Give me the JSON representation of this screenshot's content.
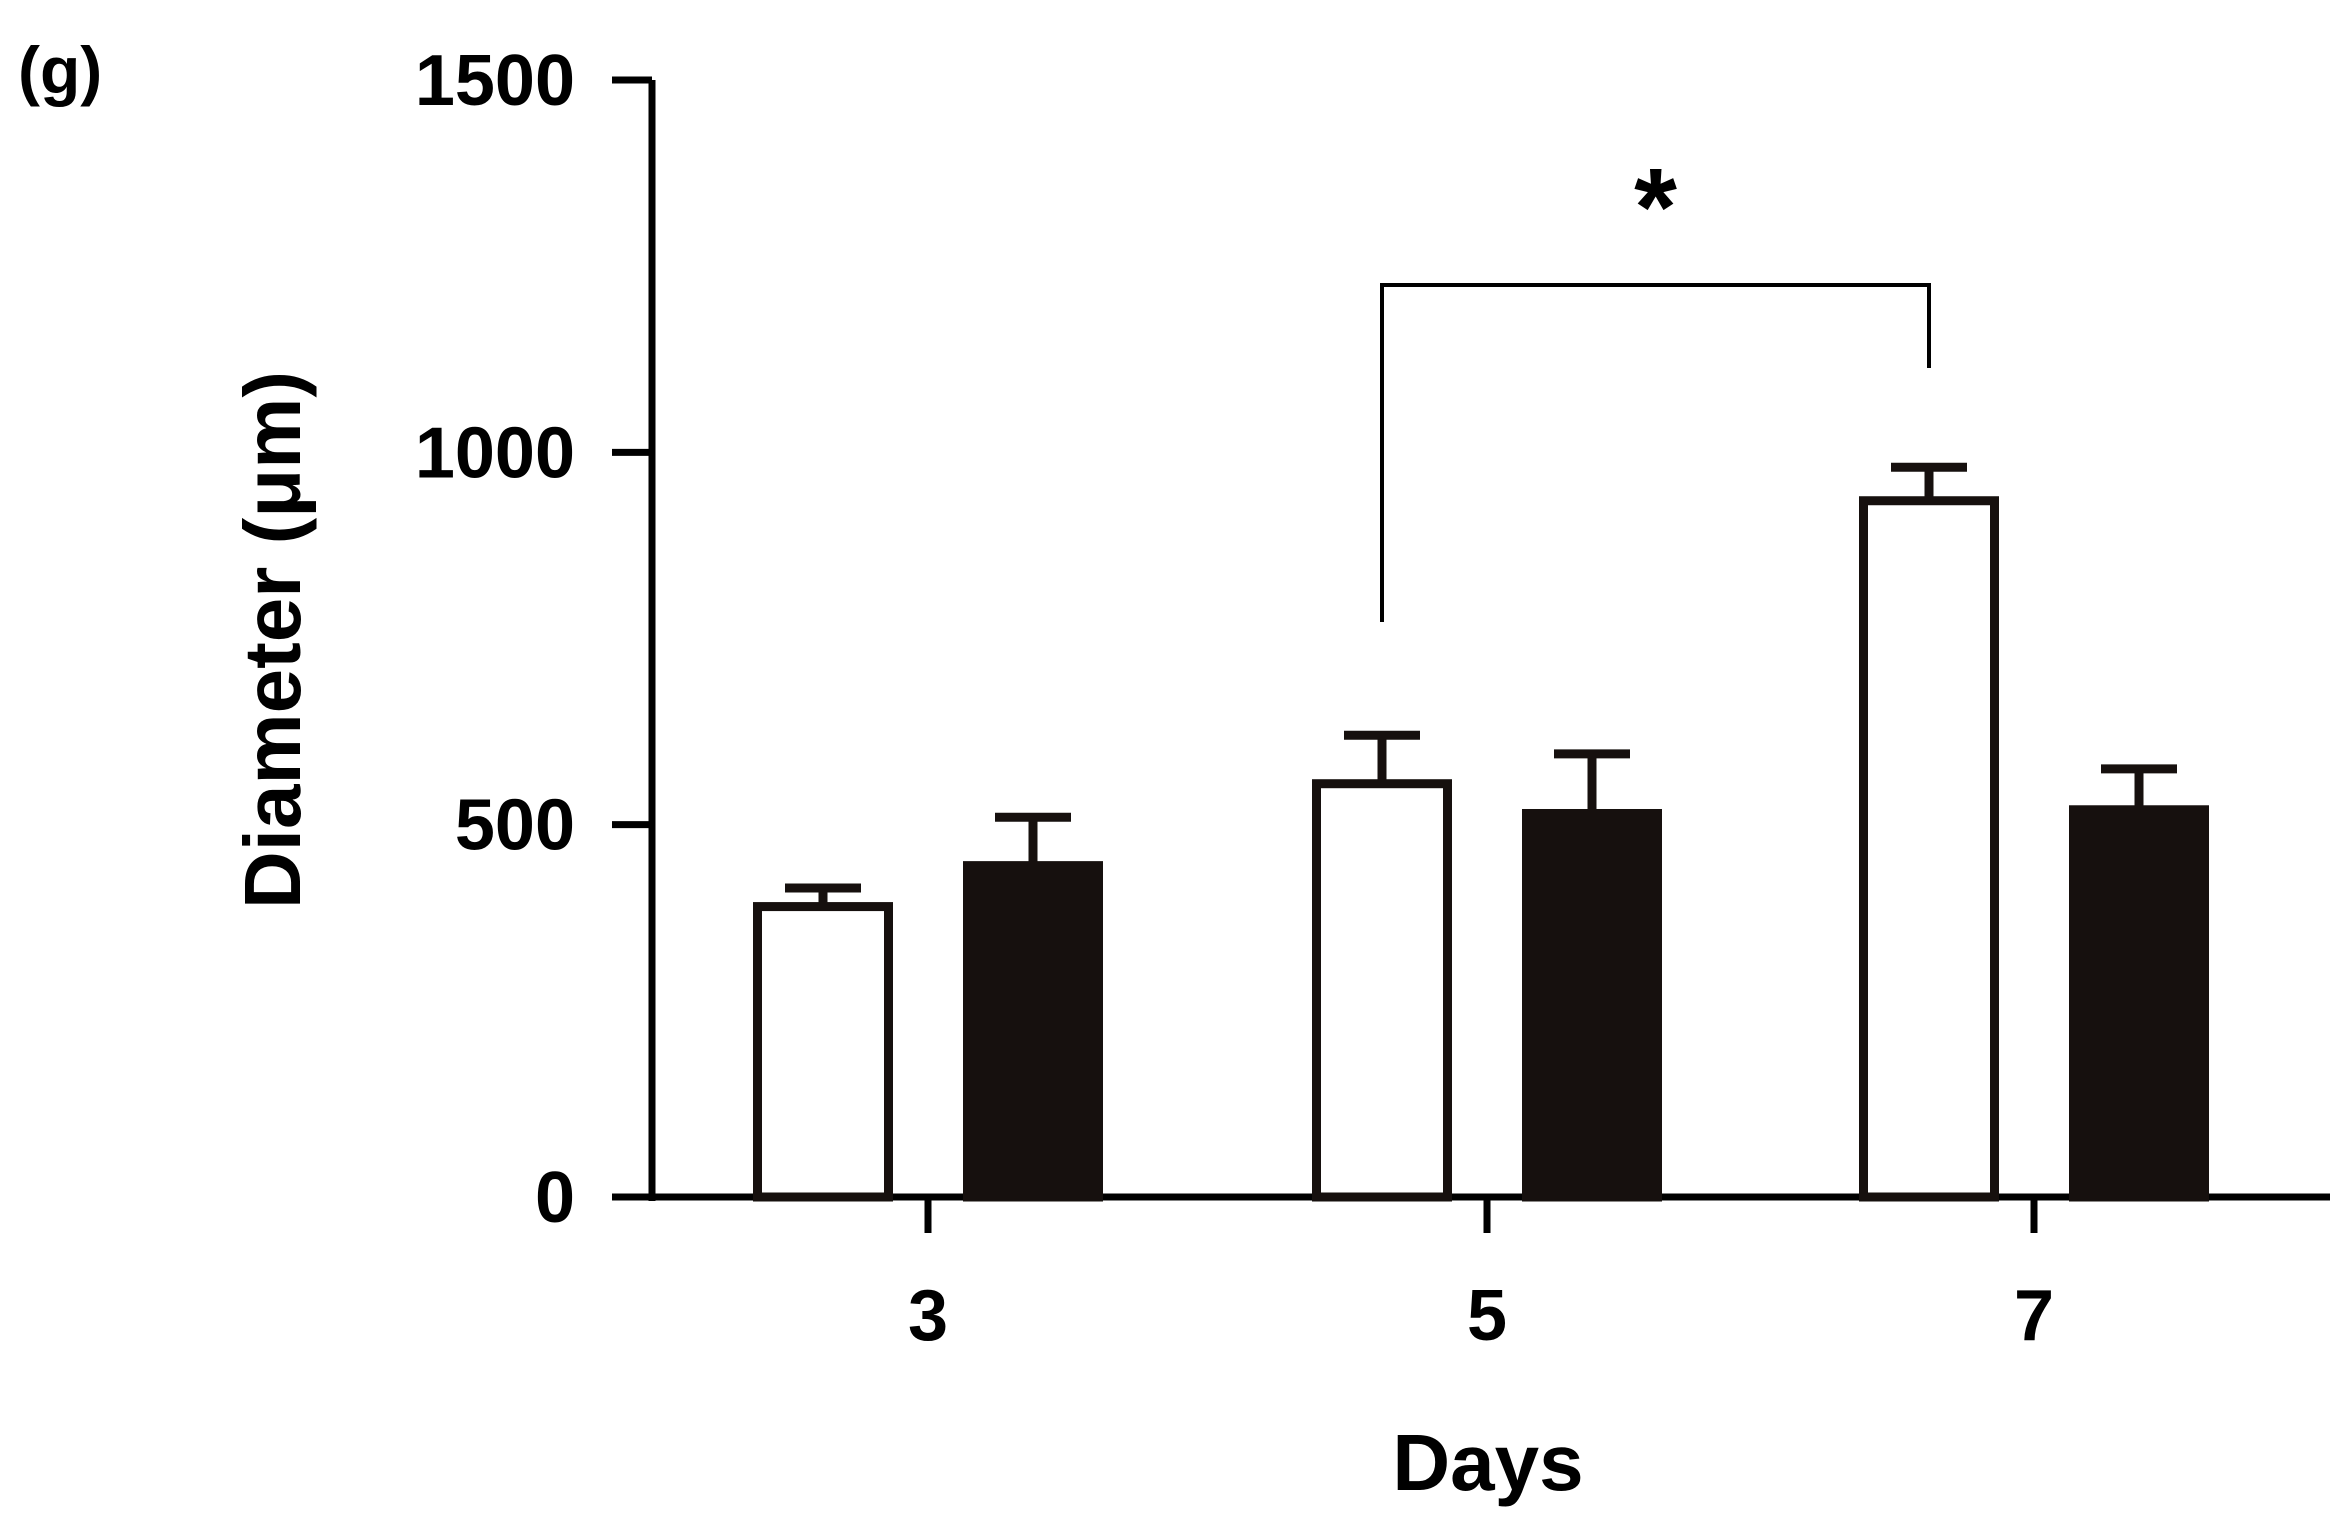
{
  "panel_label": "(g)",
  "chart_data": {
    "type": "bar",
    "categories": [
      "3",
      "5",
      "7"
    ],
    "series": [
      {
        "fill": "#ffffff",
        "values": [
          390,
          555,
          935
        ],
        "errors": [
          25,
          65,
          45
        ]
      },
      {
        "fill": "#16100e",
        "values": [
          445,
          515,
          520
        ],
        "errors": [
          65,
          80,
          55
        ]
      }
    ],
    "xlabel": "Days",
    "ylabel": "Diameter (μm)",
    "ylim": [
      0,
      1500
    ],
    "yticks": [
      0,
      500,
      1000,
      1500
    ],
    "ytick_labels": [
      "0",
      "500",
      "1000",
      "1500"
    ],
    "grid": false,
    "annotations": [
      {
        "text": "*",
        "from": {
          "category": "5",
          "series": 0
        },
        "to": {
          "category": "7",
          "series": 0
        }
      }
    ]
  }
}
